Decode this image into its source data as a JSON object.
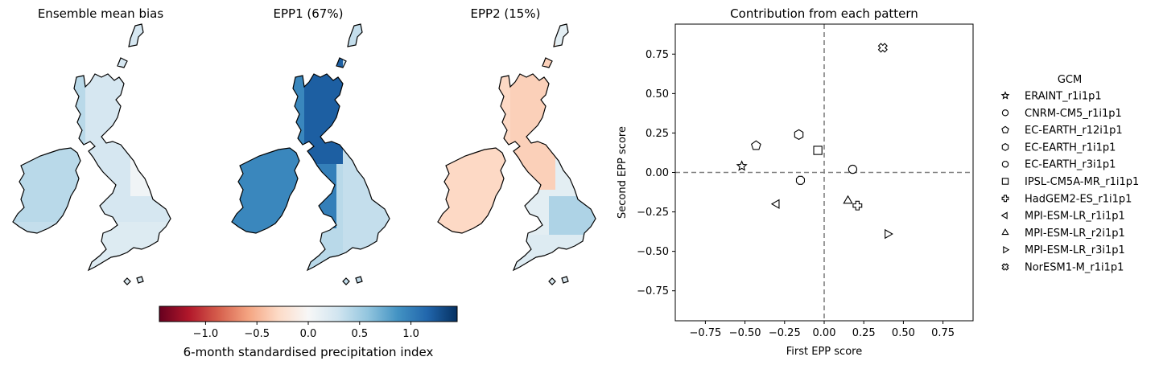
{
  "maps": [
    {
      "title": "Ensemble mean bias"
    },
    {
      "title": "EPP1 (67%)"
    },
    {
      "title": "EPP2 (15%)"
    }
  ],
  "colorbar": {
    "label": "6-month standardised precipitation index",
    "range": [
      -1.45,
      1.45
    ],
    "ticks": [
      -1.0,
      -0.5,
      0.0,
      0.5,
      1.0
    ],
    "tick_labels": [
      "−1.0",
      "−0.5",
      "0.0",
      "0.5",
      "1.0"
    ],
    "colormap": "RdBu",
    "colors": [
      "#67001f",
      "#b2182b",
      "#d6604d",
      "#f4a582",
      "#fddbc7",
      "#f7f7f7",
      "#d1e5f0",
      "#92c5de",
      "#4393c3",
      "#2166ac",
      "#053061"
    ]
  },
  "chart_data": {
    "type": "scatter",
    "title": "Contribution from each pattern",
    "xlabel": "First EPP score",
    "ylabel": "Second EPP score",
    "xlim": [
      -0.94,
      0.94
    ],
    "ylim": [
      -0.94,
      0.94
    ],
    "x_ticks": [
      -0.75,
      -0.5,
      -0.25,
      0.0,
      0.25,
      0.5,
      0.75
    ],
    "x_tick_labels": [
      "−0.75",
      "−0.50",
      "−0.25",
      "0.00",
      "0.25",
      "0.50",
      "0.75"
    ],
    "y_ticks": [
      -0.75,
      -0.5,
      -0.25,
      0.0,
      0.25,
      0.5,
      0.75
    ],
    "y_tick_labels": [
      "−0.75",
      "−0.50",
      "−0.25",
      "0.00",
      "0.25",
      "0.50",
      "0.75"
    ],
    "reference_lines": {
      "x": 0,
      "y": 0,
      "style": "dashed",
      "color": "#808080"
    },
    "grid": false,
    "legend_title": "GCM",
    "legend_position": "right, outside",
    "series": [
      {
        "name": "ERAINT_r1i1p1",
        "marker": "star",
        "x": -0.52,
        "y": 0.04
      },
      {
        "name": "CNRM-CM5_r1i1p1",
        "marker": "circle",
        "x": 0.18,
        "y": 0.02
      },
      {
        "name": "EC-EARTH_r12i1p1",
        "marker": "pentagon",
        "x": -0.43,
        "y": 0.17
      },
      {
        "name": "EC-EARTH_r1i1p1",
        "marker": "hexagon",
        "x": -0.16,
        "y": 0.24
      },
      {
        "name": "EC-EARTH_r3i1p1",
        "marker": "octagon",
        "x": -0.15,
        "y": -0.05
      },
      {
        "name": "IPSL-CM5A-MR_r1i1p1",
        "marker": "square",
        "x": -0.04,
        "y": 0.14
      },
      {
        "name": "HadGEM2-ES_r1i1p1",
        "marker": "plus",
        "x": 0.21,
        "y": -0.21
      },
      {
        "name": "MPI-ESM-LR_r1i1p1",
        "marker": "triangle-left",
        "x": -0.3,
        "y": -0.2
      },
      {
        "name": "MPI-ESM-LR_r2i1p1",
        "marker": "triangle-up",
        "x": 0.15,
        "y": -0.18
      },
      {
        "name": "MPI-ESM-LR_r3i1p1",
        "marker": "triangle-right",
        "x": 0.4,
        "y": -0.39
      },
      {
        "name": "NorESM1-M_r1i1p1",
        "marker": "x-filled",
        "x": 0.37,
        "y": 0.79
      }
    ]
  }
}
